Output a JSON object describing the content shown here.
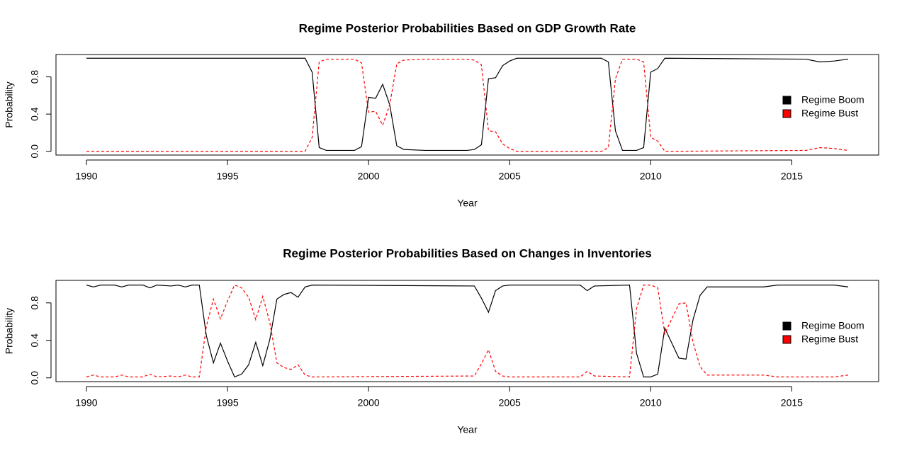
{
  "chart_data": [
    {
      "type": "line",
      "title": "Regime Posterior Probabilities Based on GDP Growth Rate",
      "xlabel": "Year",
      "ylabel": "Probability",
      "x": [
        1990,
        1997.75,
        1998,
        1998.25,
        1998.5,
        1999.5,
        1999.75,
        2000,
        2000.25,
        2000.5,
        2000.75,
        2001,
        2001.25,
        2002,
        2003.5,
        2003.75,
        2004,
        2004.25,
        2004.5,
        2004.75,
        2005,
        2005.25,
        2008.25,
        2008.5,
        2008.75,
        2009,
        2009.5,
        2009.75,
        2010,
        2010.25,
        2010.5,
        2015.5,
        2016,
        2016.5,
        2017
      ],
      "series": [
        {
          "name": "Regime Boom",
          "color": "#000000",
          "linestyle": "solid",
          "values": [
            1,
            1,
            0.85,
            0.04,
            0.01,
            0.01,
            0.05,
            0.58,
            0.57,
            0.72,
            0.5,
            0.06,
            0.02,
            0.01,
            0.01,
            0.02,
            0.07,
            0.78,
            0.79,
            0.92,
            0.97,
            1,
            1,
            0.96,
            0.22,
            0.01,
            0.01,
            0.04,
            0.85,
            0.89,
            1,
            0.99,
            0.96,
            0.97,
            0.99
          ]
        },
        {
          "name": "Regime Bust",
          "color": "#ff0000",
          "linestyle": "dashed",
          "values": [
            0,
            0,
            0.15,
            0.96,
            0.99,
            0.99,
            0.95,
            0.42,
            0.43,
            0.28,
            0.5,
            0.94,
            0.98,
            0.99,
            0.99,
            0.98,
            0.93,
            0.22,
            0.21,
            0.08,
            0.03,
            0,
            0,
            0.04,
            0.78,
            0.99,
            0.99,
            0.96,
            0.15,
            0.11,
            0,
            0.01,
            0.04,
            0.03,
            0.01
          ]
        }
      ],
      "xlim": [
        1988.92,
        2018.08
      ],
      "ylim": [
        -0.04,
        1.04
      ],
      "xticks": [
        1990,
        1995,
        2000,
        2005,
        2010,
        2015
      ],
      "yticks": [
        {
          "value": 0,
          "label": "0.0"
        },
        0.4,
        0.8
      ],
      "legend": "right"
    },
    {
      "type": "line",
      "title": "Regime Posterior Probabilities Based on Changes in Inventories",
      "xlabel": "Year",
      "ylabel": "Probability",
      "x": [
        1990,
        1990.25,
        1990.5,
        1991,
        1991.25,
        1991.5,
        1992,
        1992.25,
        1992.5,
        1993,
        1993.25,
        1993.5,
        1993.75,
        1994,
        1994.25,
        1994.5,
        1994.75,
        1995,
        1995.25,
        1995.5,
        1995.75,
        1996,
        1996.25,
        1996.5,
        1996.75,
        1997,
        1997.25,
        1997.5,
        1997.75,
        1998,
        2003.75,
        2004,
        2004.25,
        2004.5,
        2004.75,
        2005,
        2007.5,
        2007.75,
        2008,
        2009.25,
        2009.5,
        2009.75,
        2010,
        2010.25,
        2010.5,
        2011,
        2011.25,
        2011.5,
        2011.75,
        2012,
        2014,
        2014.5,
        2016.5,
        2017
      ],
      "series": [
        {
          "name": "Regime Boom",
          "color": "#000000",
          "linestyle": "solid",
          "values": [
            0.99,
            0.97,
            0.99,
            0.99,
            0.97,
            0.99,
            0.99,
            0.96,
            0.99,
            0.98,
            0.99,
            0.97,
            0.99,
            0.99,
            0.45,
            0.16,
            0.37,
            0.18,
            0.01,
            0.04,
            0.14,
            0.38,
            0.13,
            0.41,
            0.84,
            0.89,
            0.91,
            0.86,
            0.97,
            0.99,
            0.98,
            0.85,
            0.7,
            0.93,
            0.98,
            0.99,
            0.99,
            0.93,
            0.98,
            0.99,
            0.26,
            0.01,
            0.01,
            0.04,
            0.53,
            0.21,
            0.2,
            0.62,
            0.88,
            0.97,
            0.97,
            0.99,
            0.99,
            0.97
          ]
        },
        {
          "name": "Regime Bust",
          "color": "#ff0000",
          "linestyle": "dashed",
          "values": [
            0.01,
            0.03,
            0.01,
            0.01,
            0.03,
            0.01,
            0.01,
            0.04,
            0.01,
            0.02,
            0.01,
            0.03,
            0.01,
            0.01,
            0.55,
            0.84,
            0.63,
            0.82,
            0.99,
            0.96,
            0.86,
            0.62,
            0.87,
            0.59,
            0.16,
            0.11,
            0.09,
            0.14,
            0.03,
            0.01,
            0.02,
            0.15,
            0.3,
            0.07,
            0.02,
            0.01,
            0.01,
            0.07,
            0.02,
            0.01,
            0.74,
            0.99,
            0.99,
            0.96,
            0.47,
            0.79,
            0.8,
            0.38,
            0.12,
            0.03,
            0.03,
            0.01,
            0.01,
            0.03
          ]
        }
      ],
      "xlim": [
        1988.92,
        2018.08
      ],
      "ylim": [
        -0.04,
        1.04
      ],
      "xticks": [
        1990,
        1995,
        2000,
        2005,
        2010,
        2015
      ],
      "yticks": [
        {
          "value": 0,
          "label": "0.0"
        },
        0.4,
        0.8
      ],
      "legend": "right"
    }
  ]
}
